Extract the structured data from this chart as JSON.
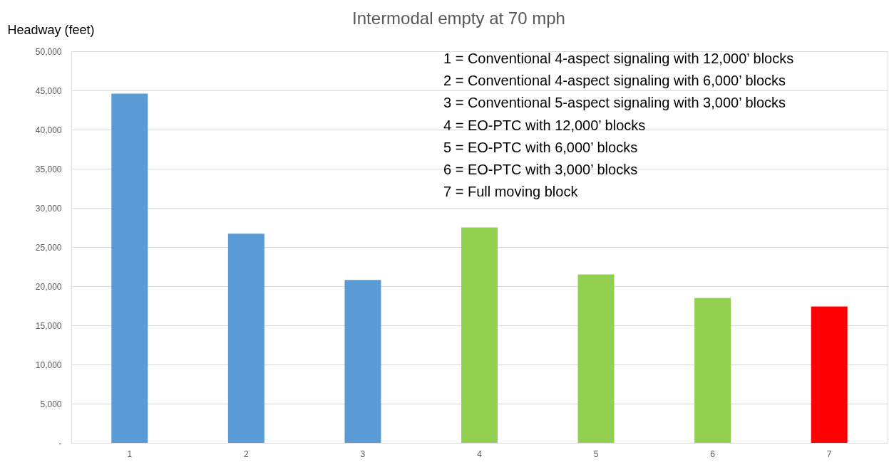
{
  "chart_data": {
    "type": "bar",
    "title": "Intermodal empty at 70 mph",
    "ylabel": "Headway (feet)",
    "categories": [
      "1",
      "2",
      "3",
      "4",
      "5",
      "6",
      "7"
    ],
    "values": [
      44600,
      26700,
      20800,
      27500,
      21500,
      18500,
      17400
    ],
    "colors": [
      "#5b9bd5",
      "#5b9bd5",
      "#5b9bd5",
      "#92d050",
      "#92d050",
      "#92d050",
      "#ff0000"
    ],
    "ylim": [
      0,
      50000
    ],
    "yticks": [
      {
        "value": 0,
        "label": "-"
      },
      {
        "value": 5000,
        "label": "5,000"
      },
      {
        "value": 10000,
        "label": "10,000"
      },
      {
        "value": 15000,
        "label": "15,000"
      },
      {
        "value": 20000,
        "label": "20,000"
      },
      {
        "value": 25000,
        "label": "25,000"
      },
      {
        "value": 30000,
        "label": "30,000"
      },
      {
        "value": 35000,
        "label": "35,000"
      },
      {
        "value": 40000,
        "label": "40,000"
      },
      {
        "value": 45000,
        "label": "45,000"
      },
      {
        "value": 50000,
        "label": "50,000"
      }
    ],
    "grid": "y",
    "annotations": [
      "1 = Conventional 4-aspect signaling with 12,000’ blocks",
      "2 = Conventional 4-aspect signaling with 6,000’ blocks",
      "3 = Conventional 5-aspect signaling with 3,000’ blocks",
      "4 = EO-PTC with 12,000’ blocks",
      "5 = EO-PTC with 6,000’ blocks",
      "6 = EO-PTC with 3,000’ blocks",
      "7 = Full moving block"
    ]
  }
}
